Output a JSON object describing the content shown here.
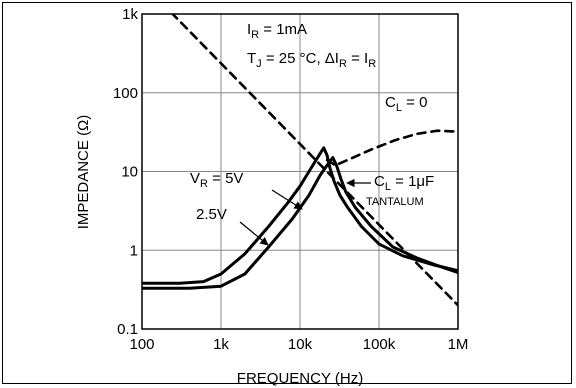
{
  "chart_data": {
    "type": "line",
    "xlabel": "FREQUENCY (Hz)",
    "ylabel": "IMPEDANCE (Ω)",
    "xscale": "log",
    "yscale": "log",
    "xlim": [
      100,
      1000000
    ],
    "ylim": [
      0.1,
      1000
    ],
    "grid": true,
    "xticks": [
      {
        "value": 100,
        "label": "100"
      },
      {
        "value": 1000,
        "label": "1k"
      },
      {
        "value": 10000,
        "label": "10k"
      },
      {
        "value": 100000,
        "label": "100k"
      },
      {
        "value": 1000000,
        "label": "1M"
      }
    ],
    "yticks": [
      {
        "value": 0.1,
        "label": "0.1"
      },
      {
        "value": 1,
        "label": "1"
      },
      {
        "value": 10,
        "label": "10"
      },
      {
        "value": 100,
        "label": "100"
      },
      {
        "value": 1000,
        "label": "1k"
      }
    ],
    "series": [
      {
        "style": "solid",
        "points": [
          [
            100,
            0.38
          ],
          [
            300,
            0.38
          ],
          [
            600,
            0.4
          ],
          [
            1000,
            0.5
          ],
          [
            2000,
            0.9
          ],
          [
            4000,
            2
          ],
          [
            7000,
            4
          ],
          [
            10000,
            6.5
          ],
          [
            13000,
            10
          ],
          [
            16000,
            14
          ],
          [
            18000,
            17
          ],
          [
            20000,
            20
          ],
          [
            22000,
            16
          ],
          [
            24000,
            11
          ],
          [
            27000,
            7.5
          ],
          [
            32000,
            5
          ],
          [
            40000,
            3.5
          ],
          [
            60000,
            2
          ],
          [
            100000,
            1.2
          ],
          [
            200000,
            0.85
          ],
          [
            500000,
            0.65
          ],
          [
            1000000,
            0.55
          ]
        ]
      },
      {
        "style": "solid",
        "points": [
          [
            100,
            0.33
          ],
          [
            400,
            0.33
          ],
          [
            1000,
            0.35
          ],
          [
            2000,
            0.5
          ],
          [
            4000,
            1.1
          ],
          [
            8000,
            2.5
          ],
          [
            13000,
            5
          ],
          [
            18000,
            9
          ],
          [
            22000,
            12
          ],
          [
            26000,
            15
          ],
          [
            29000,
            12
          ],
          [
            33000,
            8
          ],
          [
            38000,
            5.5
          ],
          [
            50000,
            3.5
          ],
          [
            80000,
            2
          ],
          [
            150000,
            1.1
          ],
          [
            300000,
            0.8
          ],
          [
            600000,
            0.62
          ],
          [
            1000000,
            0.52
          ]
        ]
      },
      {
        "style": "dashed",
        "points": [
          [
            100,
            2500
          ],
          [
            1000000,
            0.2
          ]
        ]
      },
      {
        "style": "dashed",
        "points": [
          [
            22000,
            14
          ],
          [
            28000,
            12
          ],
          [
            40000,
            14
          ],
          [
            80000,
            19
          ],
          [
            160000,
            25
          ],
          [
            300000,
            30
          ],
          [
            550000,
            33
          ],
          [
            1000000,
            32
          ]
        ]
      }
    ],
    "annotations": [
      {
        "name": "ir",
        "main": "I",
        "sub": "R",
        "rest": " = 1mA"
      },
      {
        "name": "tj",
        "main": "T",
        "sub": "J",
        "rest": " = 25 °C, ΔI",
        "sub2": "R",
        "rest2": " = I",
        "sub3": "R"
      },
      {
        "name": "cl0",
        "main": "C",
        "sub": "L",
        "rest": " = 0"
      },
      {
        "name": "vr",
        "main": "V",
        "sub": "R",
        "rest": " = 5V"
      },
      {
        "name": "v25",
        "main": "2.5V"
      },
      {
        "name": "cl1",
        "main": "C",
        "sub": "L",
        "rest": " = 1μF"
      },
      {
        "name": "tant",
        "main": "TANTALUM"
      }
    ]
  }
}
